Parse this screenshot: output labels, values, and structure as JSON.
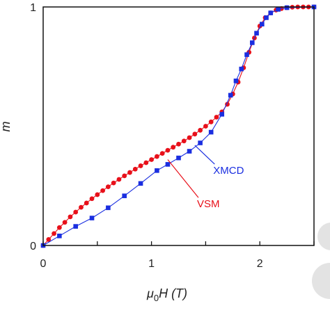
{
  "chart_data": {
    "type": "scatter",
    "xlabel_main": "μ",
    "xlabel_sub": "0",
    "xlabel_rest": "H (T)",
    "ylabel": "m",
    "xlim": [
      0,
      2.5
    ],
    "ylim": [
      0,
      1
    ],
    "x_ticks": [
      0,
      0.5,
      1,
      1.5,
      2,
      2.5
    ],
    "x_tick_labels": [
      {
        "x": 0,
        "label": "0"
      },
      {
        "x": 1,
        "label": "1"
      },
      {
        "x": 2,
        "label": "2"
      }
    ],
    "y_tick_labels": [
      {
        "y": 0,
        "label": "0"
      },
      {
        "y": 1,
        "label": "1"
      }
    ],
    "grid": false,
    "series": [
      {
        "name": "VSM",
        "color": "#e8101a",
        "marker": "circle",
        "points": [
          [
            0,
            0
          ],
          [
            0.05,
            0.025
          ],
          [
            0.1,
            0.05
          ],
          [
            0.15,
            0.075
          ],
          [
            0.2,
            0.097
          ],
          [
            0.25,
            0.12
          ],
          [
            0.3,
            0.14
          ],
          [
            0.35,
            0.16
          ],
          [
            0.4,
            0.178
          ],
          [
            0.45,
            0.196
          ],
          [
            0.5,
            0.213
          ],
          [
            0.55,
            0.23
          ],
          [
            0.6,
            0.246
          ],
          [
            0.65,
            0.262
          ],
          [
            0.7,
            0.277
          ],
          [
            0.75,
            0.292
          ],
          [
            0.8,
            0.306
          ],
          [
            0.85,
            0.32
          ],
          [
            0.9,
            0.334
          ],
          [
            0.95,
            0.347
          ],
          [
            1.0,
            0.36
          ],
          [
            1.05,
            0.373
          ],
          [
            1.1,
            0.386
          ],
          [
            1.15,
            0.399
          ],
          [
            1.2,
            0.412
          ],
          [
            1.25,
            0.425
          ],
          [
            1.3,
            0.438
          ],
          [
            1.35,
            0.452
          ],
          [
            1.4,
            0.467
          ],
          [
            1.45,
            0.483
          ],
          [
            1.5,
            0.5
          ],
          [
            1.55,
            0.518
          ],
          [
            1.6,
            0.538
          ],
          [
            1.65,
            0.56
          ],
          [
            1.7,
            0.592
          ],
          [
            1.75,
            0.635
          ],
          [
            1.8,
            0.685
          ],
          [
            1.85,
            0.745
          ],
          [
            1.9,
            0.81
          ],
          [
            1.95,
            0.87
          ],
          [
            2.0,
            0.92
          ],
          [
            2.05,
            0.955
          ],
          [
            2.1,
            0.975
          ],
          [
            2.15,
            0.987
          ],
          [
            2.2,
            0.993
          ],
          [
            2.25,
            0.997
          ],
          [
            2.3,
            0.999
          ],
          [
            2.35,
            1.0
          ],
          [
            2.4,
            1.0
          ],
          [
            2.45,
            1.0
          ],
          [
            2.5,
            1.0
          ]
        ]
      },
      {
        "name": "XMCD",
        "color": "#1a2ee0",
        "marker": "square",
        "points": [
          [
            0,
            0
          ],
          [
            0.15,
            0.04
          ],
          [
            0.3,
            0.08
          ],
          [
            0.45,
            0.115
          ],
          [
            0.6,
            0.158
          ],
          [
            0.75,
            0.208
          ],
          [
            0.9,
            0.26
          ],
          [
            1.05,
            0.314
          ],
          [
            1.15,
            0.34
          ],
          [
            1.25,
            0.367
          ],
          [
            1.35,
            0.395
          ],
          [
            1.45,
            0.43
          ],
          [
            1.55,
            0.475
          ],
          [
            1.65,
            0.55
          ],
          [
            1.73,
            0.63
          ],
          [
            1.78,
            0.69
          ],
          [
            1.83,
            0.74
          ],
          [
            1.88,
            0.8
          ],
          [
            1.93,
            0.85
          ],
          [
            1.97,
            0.89
          ],
          [
            2.02,
            0.928
          ],
          [
            2.06,
            0.955
          ],
          [
            2.1,
            0.975
          ],
          [
            2.17,
            0.99
          ],
          [
            2.25,
            0.997
          ],
          [
            2.5,
            1.0
          ]
        ]
      }
    ],
    "annotations": [
      {
        "text": "XMCD",
        "color": "#1a2ee0",
        "x": 1.57,
        "y": 0.3,
        "arrow_to": [
          1.4,
          0.42
        ]
      },
      {
        "text": "VSM",
        "color": "#e8101a",
        "x": 1.42,
        "y": 0.16,
        "arrow_to": [
          1.15,
          0.36
        ]
      }
    ]
  }
}
